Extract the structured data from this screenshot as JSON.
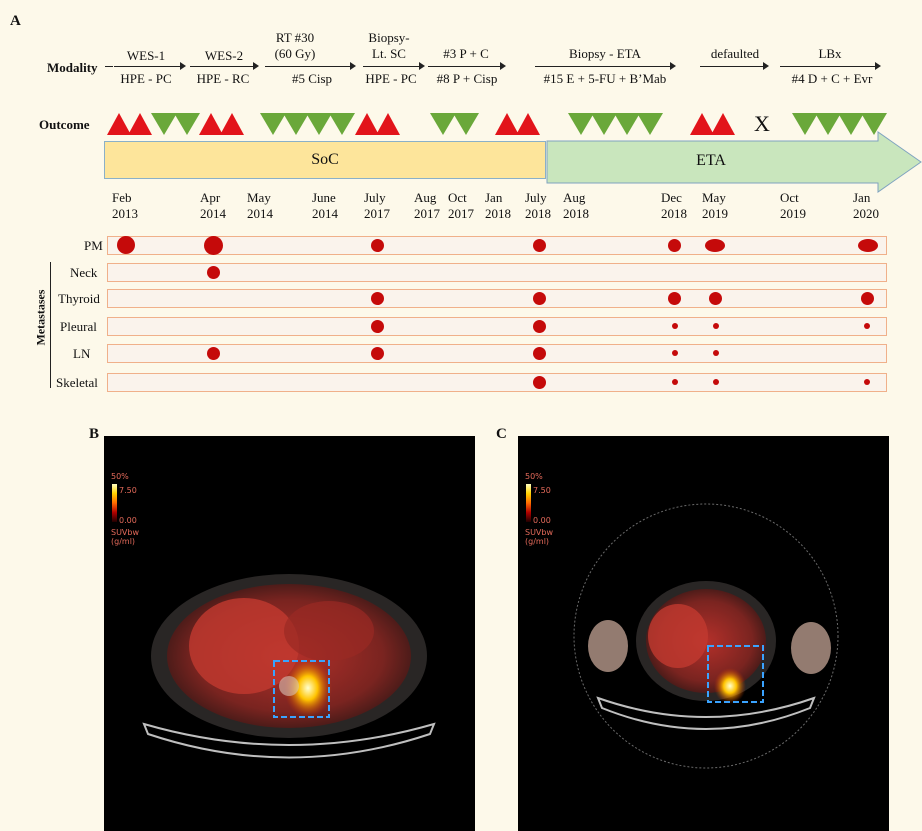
{
  "panels": {
    "A": "A",
    "B": "B",
    "C": "C"
  },
  "modality": {
    "label": "Modality",
    "items": [
      {
        "top": "WES-1",
        "bottom": "HPE - PC"
      },
      {
        "top": "WES-2",
        "bottom": "HPE - RC"
      },
      {
        "top1": "RT #30",
        "top2": "(60 Gy)",
        "bottom": "#5 Cisp"
      },
      {
        "top1": "Biopsy-",
        "top2": "Lt. SC",
        "bottom": "HPE - PC"
      },
      {
        "top": "#3 P + C",
        "bottom": "#8 P + Cisp"
      },
      {
        "top": "Biopsy - ETA",
        "bottom": "#15 E + 5-FU + B’Mab"
      },
      {
        "top": "defaulted",
        "bottom": ""
      },
      {
        "top": "LBx",
        "bottom": "#4 D + C + Evr"
      }
    ]
  },
  "outcome": {
    "label": "Outcome",
    "x_mark": "X",
    "colors": {
      "progression": "#e2141a",
      "response": "#6aa83a"
    }
  },
  "phases": {
    "soc": "SoC",
    "eta": "ETA",
    "soc_color": "#fde59b",
    "eta_color": "#c9e6bd"
  },
  "dates": [
    {
      "m": "Feb",
      "y": "2013"
    },
    {
      "m": "Apr",
      "y": "2014"
    },
    {
      "m": "May",
      "y": "2014"
    },
    {
      "m": "June",
      "y": "2014"
    },
    {
      "m": "July",
      "y": "2017"
    },
    {
      "m": "Aug",
      "y": "2017"
    },
    {
      "m": "Oct",
      "y": "2017"
    },
    {
      "m": "Jan",
      "y": "2018"
    },
    {
      "m": "July",
      "y": "2018"
    },
    {
      "m": "Aug",
      "y": "2018"
    },
    {
      "m": "Dec",
      "y": "2018"
    },
    {
      "m": "May",
      "y": "2019"
    },
    {
      "m": "Oct",
      "y": "2019"
    },
    {
      "m": "Jan",
      "y": "2020"
    }
  ],
  "sites": {
    "group_label": "Metastases",
    "rows": [
      "PM",
      "Neck",
      "Thyroid",
      "Pleural",
      "LN",
      "Skeletal"
    ]
  },
  "scan_legend": {
    "pct": "50%",
    "max": "7.50",
    "min": "0.00",
    "unit1": "SUVbw",
    "unit2": "(g/ml)"
  }
}
